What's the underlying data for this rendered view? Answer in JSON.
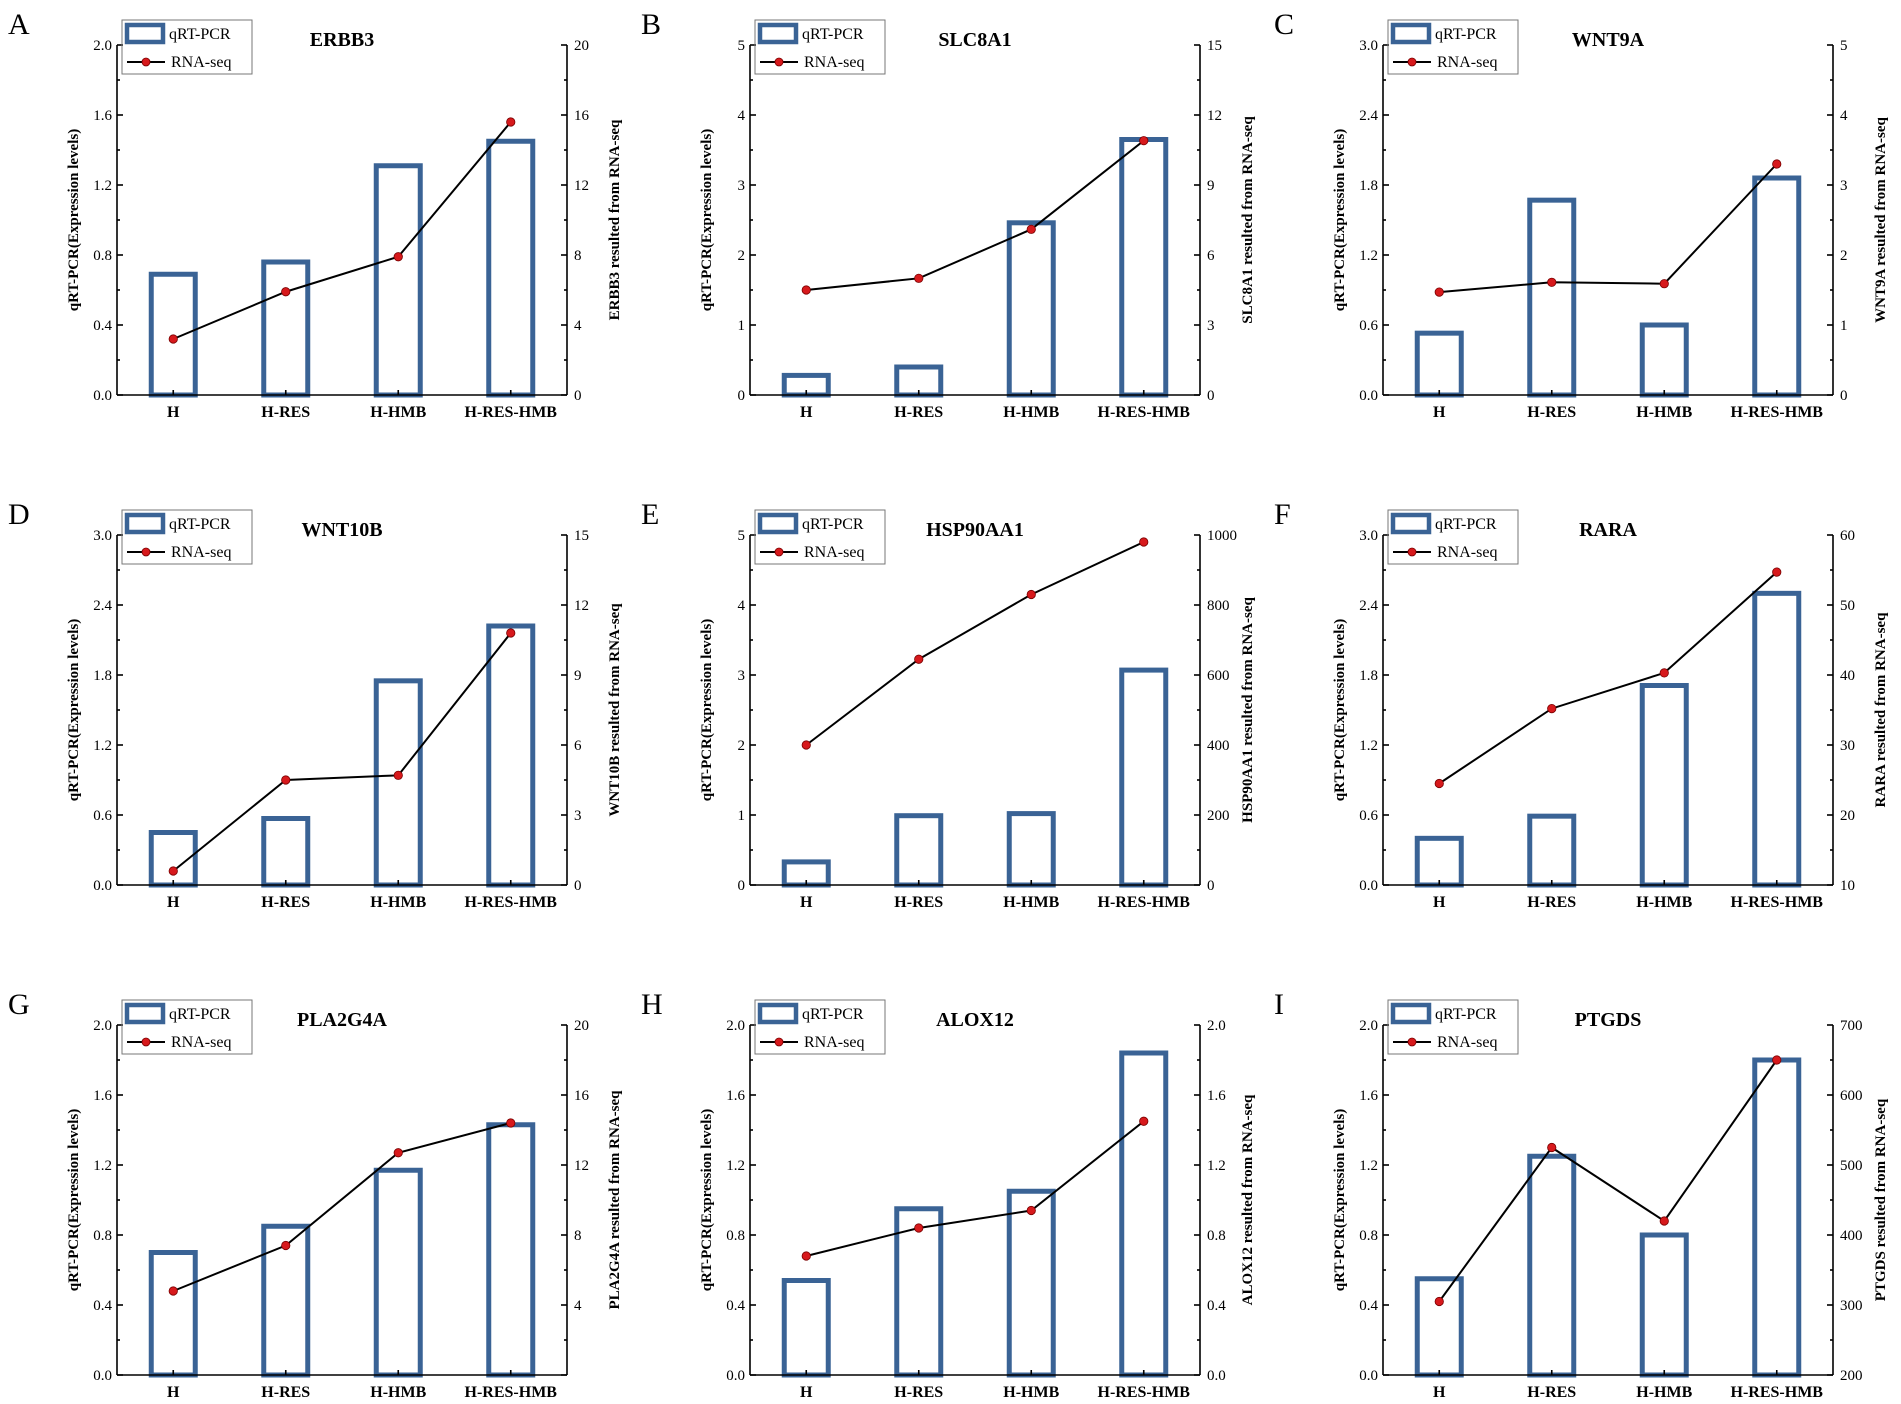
{
  "figure": {
    "legend": {
      "bar_label": "qRT-PCR",
      "line_label": "RNA-seq"
    },
    "left_axis_title": "qRT-PCR(Expression levels)",
    "colors": {
      "bar": "#3A6395",
      "line": "#000000",
      "marker": "#D7191C"
    }
  },
  "chart_data": [
    {
      "panel": "A",
      "type": "bar+line",
      "title": "ERBB3",
      "categories": [
        "H",
        "H-RES",
        "H-HMB",
        "H-RES-HMB"
      ],
      "ylabel": "qRT-PCR(Expression levels)",
      "y2label": "ERBB3 resulted from RNA-seq",
      "ylim": [
        0,
        2.0
      ],
      "yticks": [
        "0.0",
        "0.4",
        "0.8",
        "1.2",
        "1.6",
        "2.0"
      ],
      "y2lim": [
        0,
        20
      ],
      "y2ticks": [
        "0",
        "4",
        "8",
        "12",
        "16",
        "20"
      ],
      "series": [
        {
          "name": "qRT-PCR",
          "kind": "bar",
          "axis": "left",
          "values": [
            0.69,
            0.76,
            1.31,
            1.45
          ]
        },
        {
          "name": "RNA-seq",
          "kind": "line",
          "axis": "right",
          "values": [
            3.2,
            5.9,
            7.9,
            15.6
          ]
        }
      ]
    },
    {
      "panel": "B",
      "type": "bar+line",
      "title": "SLC8A1",
      "categories": [
        "H",
        "H-RES",
        "H-HMB",
        "H-RES-HMB"
      ],
      "ylabel": "qRT-PCR(Expression levels)",
      "y2label": "SLC8A1 resulted from RNA-seq",
      "ylim": [
        0,
        5
      ],
      "yticks": [
        "0",
        "1",
        "2",
        "3",
        "4",
        "5"
      ],
      "y2lim": [
        0,
        15
      ],
      "y2ticks": [
        "0",
        "3",
        "6",
        "9",
        "12",
        "15"
      ],
      "series": [
        {
          "name": "qRT-PCR",
          "kind": "bar",
          "axis": "left",
          "values": [
            0.28,
            0.4,
            2.46,
            3.65
          ]
        },
        {
          "name": "RNA-seq",
          "kind": "line",
          "axis": "right",
          "values": [
            4.5,
            5.0,
            7.1,
            10.9
          ]
        }
      ]
    },
    {
      "panel": "C",
      "type": "bar+line",
      "title": "WNT9A",
      "categories": [
        "H",
        "H-RES",
        "H-HMB",
        "H-RES-HMB"
      ],
      "ylabel": "qRT-PCR(Expression levels)",
      "y2label": "WNT9A resulted from RNA-seq",
      "ylim": [
        0,
        3.0
      ],
      "yticks": [
        "0.0",
        "0.6",
        "1.2",
        "1.8",
        "2.4",
        "3.0"
      ],
      "y2lim": [
        0,
        5
      ],
      "y2ticks": [
        "0",
        "1",
        "2",
        "3",
        "4",
        "5"
      ],
      "series": [
        {
          "name": "qRT-PCR",
          "kind": "bar",
          "axis": "left",
          "values": [
            0.53,
            1.67,
            0.6,
            1.86
          ]
        },
        {
          "name": "RNA-seq",
          "kind": "line",
          "axis": "right",
          "values": [
            1.47,
            1.61,
            1.59,
            3.3
          ]
        }
      ]
    },
    {
      "panel": "D",
      "type": "bar+line",
      "title": "WNT10B",
      "categories": [
        "H",
        "H-RES",
        "H-HMB",
        "H-RES-HMB"
      ],
      "ylabel": "qRT-PCR(Expression levels)",
      "y2label": "WNT10B resulted from RNA-seq",
      "ylim": [
        0,
        3.0
      ],
      "yticks": [
        "0.0",
        "0.6",
        "1.2",
        "1.8",
        "2.4",
        "3.0"
      ],
      "y2lim": [
        0,
        15
      ],
      "y2ticks": [
        "0",
        "3",
        "6",
        "9",
        "12",
        "15"
      ],
      "series": [
        {
          "name": "qRT-PCR",
          "kind": "bar",
          "axis": "left",
          "values": [
            0.45,
            0.57,
            1.75,
            2.22
          ]
        },
        {
          "name": "RNA-seq",
          "kind": "line",
          "axis": "right",
          "values": [
            0.6,
            4.5,
            4.7,
            10.8
          ]
        }
      ]
    },
    {
      "panel": "E",
      "type": "bar+line",
      "title": "HSP90AA1",
      "categories": [
        "H",
        "H-RES",
        "H-HMB",
        "H-RES-HMB"
      ],
      "ylabel": "qRT-PCR(Expression levels)",
      "y2label": "HSP90AA1 resulted from RNA-seq",
      "ylim": [
        0,
        5
      ],
      "yticks": [
        "0",
        "1",
        "2",
        "3",
        "4",
        "5"
      ],
      "y2lim": [
        0,
        1000
      ],
      "y2ticks": [
        "0",
        "200",
        "400",
        "600",
        "800",
        "1000"
      ],
      "series": [
        {
          "name": "qRT-PCR",
          "kind": "bar",
          "axis": "left",
          "values": [
            0.33,
            0.99,
            1.02,
            3.07
          ]
        },
        {
          "name": "RNA-seq",
          "kind": "line",
          "axis": "right",
          "values": [
            400,
            645,
            830,
            980
          ]
        }
      ]
    },
    {
      "panel": "F",
      "type": "bar+line",
      "title": "RARA",
      "categories": [
        "H",
        "H-RES",
        "H-HMB",
        "H-RES-HMB"
      ],
      "ylabel": "qRT-PCR(Expression levels)",
      "y2label": "RARA resulted from RNA-seq",
      "ylim": [
        0,
        3.0
      ],
      "yticks": [
        "0.0",
        "0.6",
        "1.2",
        "1.8",
        "2.4",
        "3.0"
      ],
      "y2lim": [
        10,
        60
      ],
      "y2ticks": [
        "10",
        "20",
        "30",
        "40",
        "50",
        "60"
      ],
      "series": [
        {
          "name": "qRT-PCR",
          "kind": "bar",
          "axis": "left",
          "values": [
            0.4,
            0.59,
            1.71,
            2.5
          ]
        },
        {
          "name": "RNA-seq",
          "kind": "line",
          "axis": "right",
          "values": [
            24.5,
            35.2,
            40.3,
            54.7
          ]
        }
      ]
    },
    {
      "panel": "G",
      "type": "bar+line",
      "title": "PLA2G4A",
      "categories": [
        "H",
        "H-RES",
        "H-HMB",
        "H-RES-HMB"
      ],
      "ylabel": "qRT-PCR(Expression levels)",
      "y2label": "PLA2G4A resulted from RNA-seq",
      "ylim": [
        0,
        2.0
      ],
      "yticks": [
        "0.0",
        "0.4",
        "0.8",
        "1.2",
        "1.6",
        "2.0"
      ],
      "y2lim": [
        0,
        20
      ],
      "y2ticks": [
        "",
        "4",
        "8",
        "12",
        "16",
        "20"
      ],
      "series": [
        {
          "name": "qRT-PCR",
          "kind": "bar",
          "axis": "left",
          "values": [
            0.7,
            0.85,
            1.17,
            1.43
          ]
        },
        {
          "name": "RNA-seq",
          "kind": "line",
          "axis": "right",
          "values": [
            4.8,
            7.4,
            12.7,
            14.4
          ]
        }
      ]
    },
    {
      "panel": "H",
      "type": "bar+line",
      "title": "ALOX12",
      "categories": [
        "H",
        "H-RES",
        "H-HMB",
        "H-RES-HMB"
      ],
      "ylabel": "qRT-PCR(Expression levels)",
      "y2label": "ALOX12 resulted from RNA-seq",
      "ylim": [
        0,
        2.0
      ],
      "yticks": [
        "0.0",
        "0.4",
        "0.8",
        "1.2",
        "1.6",
        "2.0"
      ],
      "y2lim": [
        0,
        2.0
      ],
      "y2ticks": [
        "0.0",
        "0.4",
        "0.8",
        "1.2",
        "1.6",
        "2.0"
      ],
      "series": [
        {
          "name": "qRT-PCR",
          "kind": "bar",
          "axis": "left",
          "values": [
            0.54,
            0.95,
            1.05,
            1.84
          ]
        },
        {
          "name": "RNA-seq",
          "kind": "line",
          "axis": "right",
          "values": [
            0.68,
            0.84,
            0.94,
            1.45
          ]
        }
      ]
    },
    {
      "panel": "I",
      "type": "bar+line",
      "title": "PTGDS",
      "categories": [
        "H",
        "H-RES",
        "H-HMB",
        "H-RES-HMB"
      ],
      "ylabel": "qRT-PCR(Expression levels)",
      "y2label": "PTGDS resulted from RNA-seq",
      "ylim": [
        0,
        2.0
      ],
      "yticks": [
        "0.0",
        "0.4",
        "0.8",
        "1.2",
        "1.6",
        "2.0"
      ],
      "y2lim": [
        200,
        700
      ],
      "y2ticks": [
        "200",
        "300",
        "400",
        "500",
        "600",
        "700"
      ],
      "series": [
        {
          "name": "qRT-PCR",
          "kind": "bar",
          "axis": "left",
          "values": [
            0.55,
            1.25,
            0.8,
            1.8
          ]
        },
        {
          "name": "RNA-seq",
          "kind": "line",
          "axis": "right",
          "values": [
            305,
            525,
            420,
            650
          ]
        }
      ]
    }
  ]
}
